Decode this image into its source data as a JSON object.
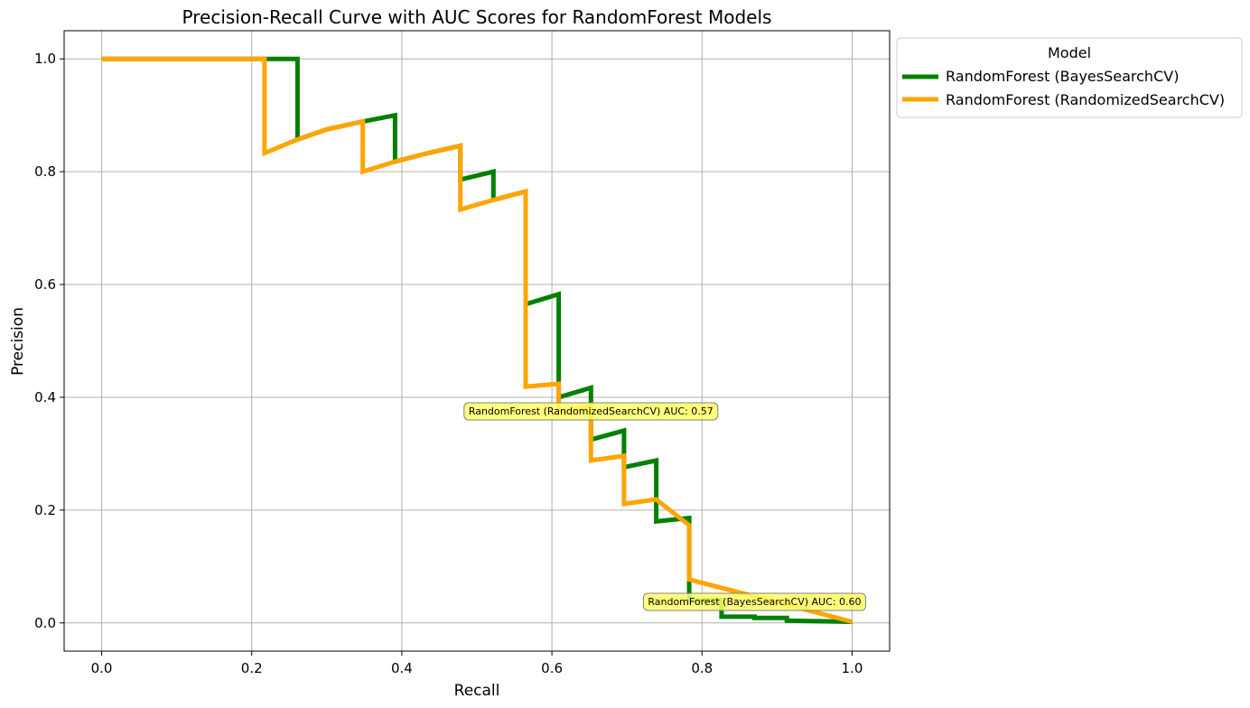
{
  "chart_data": {
    "type": "line",
    "title": "Precision-Recall Curve with AUC Scores for RandomForest Models",
    "xlabel": "Recall",
    "ylabel": "Precision",
    "xlim": [
      -0.05,
      1.05
    ],
    "ylim": [
      -0.05,
      1.05
    ],
    "xticks": [
      "0.0",
      "0.2",
      "0.4",
      "0.6",
      "0.8",
      "1.0"
    ],
    "yticks": [
      "0.0",
      "0.2",
      "0.4",
      "0.6",
      "0.8",
      "1.0"
    ],
    "grid": true,
    "legend": {
      "title": "Model",
      "placement": "outside-top-right"
    },
    "series": [
      {
        "name": "RandomForest (BayesSearchCV)",
        "color": "#008000",
        "x": [
          0.0,
          0.261,
          0.261,
          0.3,
          0.348,
          0.391,
          0.391,
          0.435,
          0.478,
          0.478,
          0.522,
          0.522,
          0.565,
          0.565,
          0.609,
          0.609,
          0.652,
          0.652,
          0.696,
          0.696,
          0.739,
          0.739,
          0.783,
          0.783,
          0.826,
          0.826,
          0.87,
          0.87,
          0.913,
          0.913,
          1.0
        ],
        "y": [
          1.0,
          1.0,
          0.857,
          0.875,
          0.889,
          0.9,
          0.818,
          0.833,
          0.846,
          0.786,
          0.8,
          0.75,
          0.765,
          0.565,
          0.583,
          0.4,
          0.417,
          0.325,
          0.341,
          0.276,
          0.288,
          0.18,
          0.186,
          0.04,
          0.04,
          0.011,
          0.011,
          0.009,
          0.009,
          0.004,
          0.002
        ]
      },
      {
        "name": "RandomForest (RandomizedSearchCV)",
        "color": "#FFA500",
        "x": [
          0.0,
          0.217,
          0.217,
          0.261,
          0.3,
          0.348,
          0.348,
          0.391,
          0.435,
          0.478,
          0.478,
          0.522,
          0.565,
          0.565,
          0.609,
          0.609,
          0.652,
          0.652,
          0.696,
          0.696,
          0.739,
          0.783,
          0.783,
          1.0
        ],
        "y": [
          1.0,
          1.0,
          0.833,
          0.857,
          0.875,
          0.889,
          0.8,
          0.818,
          0.833,
          0.846,
          0.733,
          0.75,
          0.765,
          0.419,
          0.424,
          0.371,
          0.385,
          0.288,
          0.296,
          0.211,
          0.219,
          0.173,
          0.077,
          0.002
        ]
      }
    ],
    "annotations": [
      {
        "text": "RandomForest (RandomizedSearchCV) AUC: 0.57",
        "x": 0.652,
        "y": 0.376
      },
      {
        "text": "RandomForest (BayesSearchCV) AUC: 0.60",
        "x": 0.87,
        "y": 0.038
      }
    ],
    "annotation_style": {
      "background": "#FFFF66",
      "border": "#808080"
    }
  }
}
